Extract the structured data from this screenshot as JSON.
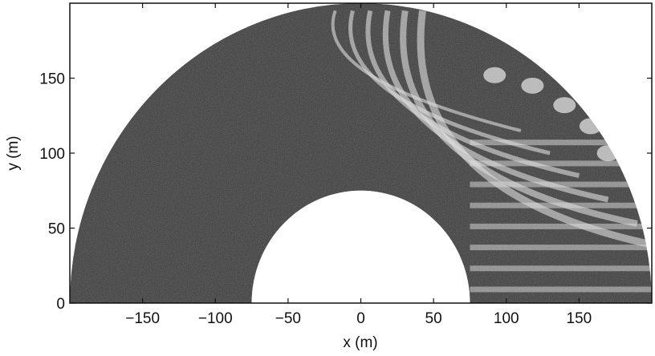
{
  "chart_data": {
    "type": "heatmap",
    "title": "",
    "xlabel": "x (m)",
    "ylabel": "y (m)",
    "xlim": [
      -200,
      200
    ],
    "ylim": [
      0,
      200
    ],
    "x_ticks": [
      -150,
      -100,
      -50,
      0,
      50,
      100,
      150
    ],
    "x_tick_labels": [
      "−150",
      "−100",
      "−50",
      "0",
      "50",
      "100",
      "150"
    ],
    "y_ticks": [
      0,
      50,
      100,
      150
    ],
    "y_tick_labels": [
      "0",
      "50",
      "100",
      "150"
    ],
    "domain": {
      "shape": "half-annulus",
      "center": [
        0,
        0
      ],
      "inner_radius": 75,
      "outer_radius": 200
    },
    "colormap": "grayscale",
    "colorbar": false,
    "grid": false
  },
  "colors": {
    "background": "#ffffff",
    "field_dark": "#3a3a3a",
    "field_light": "#e6e6e6",
    "axis": "#111111"
  }
}
